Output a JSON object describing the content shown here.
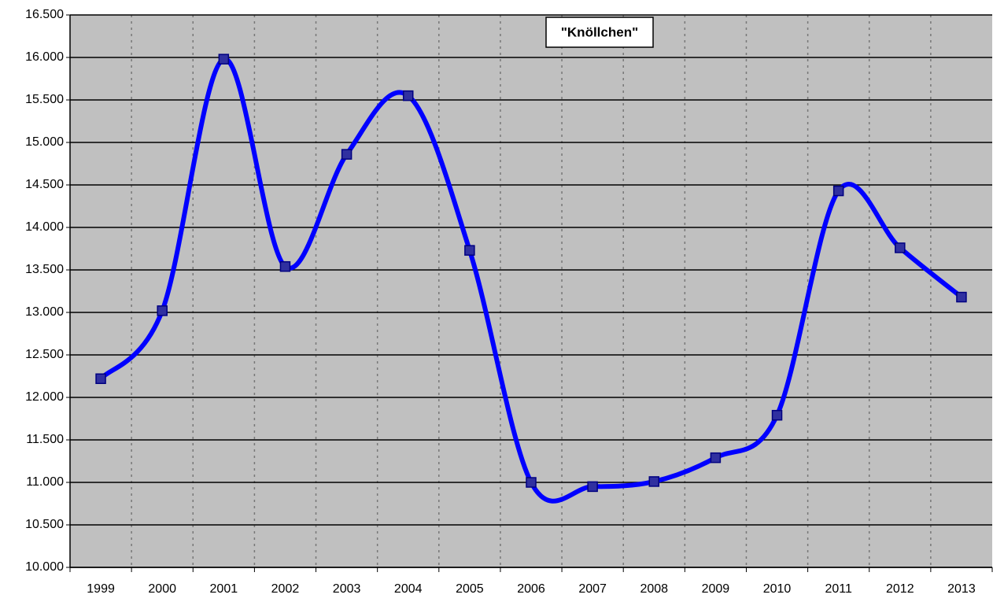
{
  "chart_data": {
    "type": "line",
    "title": "\"Knöllchen\"",
    "categories": [
      "1999",
      "2000",
      "2001",
      "2002",
      "2003",
      "2004",
      "2005",
      "2006",
      "2007",
      "2008",
      "2009",
      "2010",
      "2011",
      "2012",
      "2013"
    ],
    "series": [
      {
        "name": "Knöllchen",
        "color": "#0000ff",
        "values": [
          12220,
          13020,
          15980,
          13540,
          14860,
          15550,
          13730,
          11000,
          10950,
          11010,
          11290,
          11790,
          14430,
          13760,
          13180
        ]
      }
    ],
    "ylim": [
      10000,
      16500
    ],
    "yticks": [
      {
        "value": 10000,
        "label": "10.000"
      },
      {
        "value": 10500,
        "label": "10.500"
      },
      {
        "value": 11000,
        "label": "11.000"
      },
      {
        "value": 11500,
        "label": "11.500"
      },
      {
        "value": 12000,
        "label": "12.000"
      },
      {
        "value": 12500,
        "label": "12.500"
      },
      {
        "value": 13000,
        "label": "13.000"
      },
      {
        "value": 13500,
        "label": "13.500"
      },
      {
        "value": 14000,
        "label": "14.000"
      },
      {
        "value": 14500,
        "label": "14.500"
      },
      {
        "value": 15000,
        "label": "15.000"
      },
      {
        "value": 15500,
        "label": "15.500"
      },
      {
        "value": 16000,
        "label": "16.000"
      },
      {
        "value": 16500,
        "label": "16.500"
      }
    ],
    "grid": true,
    "smooth": true,
    "background": "#c0c0c0"
  }
}
